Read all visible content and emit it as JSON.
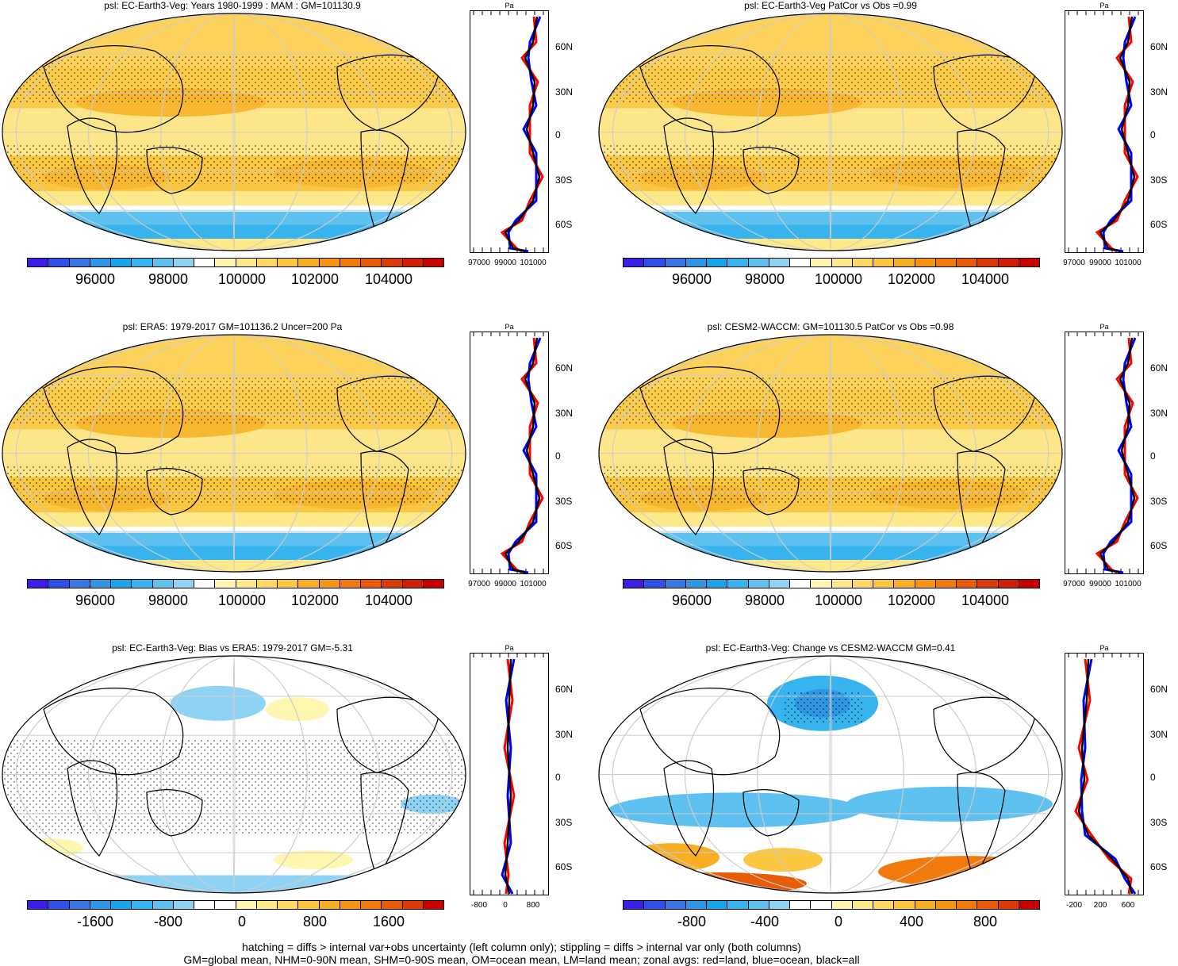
{
  "panels": [
    {
      "title": "psl: EC-Earth3-Veg: Years 1980-1999 : MAM : GM=101130.9",
      "kind": "abs",
      "cb_labels": [
        "96000",
        "98000",
        "100000",
        "102000",
        "104000"
      ],
      "zonal_ticks": [
        "97000",
        "99000",
        "101000"
      ],
      "zonal_lats": [
        "60N",
        "30N",
        "0",
        "30S",
        "60S"
      ],
      "zonal_unit": "Pa"
    },
    {
      "title": "psl: EC-Earth3-Veg PatCor vs Obs =0.99",
      "kind": "abs",
      "cb_labels": [
        "96000",
        "98000",
        "100000",
        "102000",
        "104000"
      ],
      "zonal_ticks": [
        "97000",
        "99000",
        "101000"
      ],
      "zonal_lats": [
        "60N",
        "30N",
        "0",
        "30S",
        "60S"
      ],
      "zonal_unit": "Pa"
    },
    {
      "title": "psl: ERA5: 1979-2017 GM=101136.2 Uncer=200 Pa",
      "kind": "abs",
      "cb_labels": [
        "96000",
        "98000",
        "100000",
        "102000",
        "104000"
      ],
      "zonal_ticks": [
        "97000",
        "99000",
        "101000"
      ],
      "zonal_lats": [
        "60N",
        "30N",
        "0",
        "30S",
        "60S"
      ],
      "zonal_unit": "Pa"
    },
    {
      "title": "psl: CESM2-WACCM: GM=101130.5 PatCor vs Obs =0.98",
      "kind": "abs",
      "cb_labels": [
        "96000",
        "98000",
        "100000",
        "102000",
        "104000"
      ],
      "zonal_ticks": [
        "97000",
        "99000",
        "101000"
      ],
      "zonal_lats": [
        "60N",
        "30N",
        "0",
        "30S",
        "60S"
      ],
      "zonal_unit": "Pa"
    },
    {
      "title": "psl: EC-Earth3-Veg: Bias vs ERA5: 1979-2017 GM=-5.31",
      "kind": "bias",
      "cb_labels": [
        "-1600",
        "-800",
        "0",
        "800",
        "1600"
      ],
      "zonal_ticks": [
        "-800",
        "0",
        "800"
      ],
      "zonal_lats": [
        "60N",
        "30N",
        "0",
        "30S",
        "60S"
      ],
      "zonal_unit": "Pa"
    },
    {
      "title": "psl: EC-Earth3-Veg: Change vs CESM2-WACCM GM=0.41",
      "kind": "change",
      "cb_labels": [
        "-800",
        "-400",
        "0",
        "400",
        "800"
      ],
      "zonal_ticks": [
        "-200",
        "200",
        "600"
      ],
      "zonal_lats": [
        "60N",
        "30N",
        "0",
        "30S",
        "60S"
      ],
      "zonal_unit": "Pa"
    }
  ],
  "colors": {
    "abs": [
      "#3a1fe6",
      "#2d50e8",
      "#3a78e6",
      "#2f96e6",
      "#1aa3e8",
      "#37b3ee",
      "#5ec1f0",
      "#8fd3f4",
      "#ffffff",
      "#fff6b0",
      "#fde88a",
      "#fdd862",
      "#fbc640",
      "#f7ae22",
      "#f69414",
      "#f07b0c",
      "#e85c08",
      "#dc3a06",
      "#d41e04",
      "#c80000"
    ],
    "diff": [
      "#3a1fe6",
      "#2d50e8",
      "#3a78e6",
      "#2f96e6",
      "#1aa3e8",
      "#37b3ee",
      "#5ec1f0",
      "#8fd3f4",
      "#ffffff",
      "#ffffff",
      "#fff6b0",
      "#fde88a",
      "#fdd862",
      "#fbc640",
      "#f7ae22",
      "#f69414",
      "#f07b0c",
      "#e85c08",
      "#dc3a06",
      "#c80000"
    ]
  },
  "footer": {
    "line1": "hatching = diffs > internal var+obs uncertainty (left column only); stippling = diffs > internal var only (both columns)",
    "line2": "GM=global mean, NHM=0-90N mean, SHM=0-90S mean, OM=ocean mean, LM=land mean; zonal avgs: red=land, blue=ocean, black=all"
  }
}
